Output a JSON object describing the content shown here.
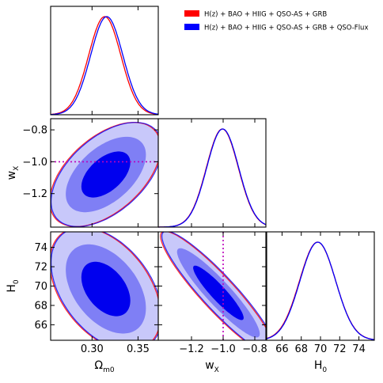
{
  "chart_data": {
    "type": "triangle-corner-plot",
    "parameters": [
      {
        "key": "Om",
        "label": "Ω",
        "label_sub": "m0",
        "range": [
          0.255,
          0.372
        ],
        "ticks": [
          0.3,
          0.35
        ],
        "tick_labels": [
          "0.30",
          "0.35"
        ],
        "truth": null
      },
      {
        "key": "wX",
        "label": "w",
        "label_sub": "X",
        "range": [
          -1.41,
          -0.73
        ],
        "ticks": [
          -1.2,
          -1.0,
          -0.8
        ],
        "tick_labels": [
          "−1.2",
          "−1.0",
          "−0.8"
        ],
        "truth": -1.0
      },
      {
        "key": "H0",
        "label": "H",
        "label_sub": "0",
        "range": [
          64.4,
          75.6
        ],
        "ticks": [
          66,
          68,
          70,
          72,
          74
        ],
        "tick_labels": [
          "66",
          "68",
          "70",
          "72",
          "74"
        ],
        "truth": null
      }
    ],
    "legend": {
      "placement": "top-right",
      "entries": [
        {
          "label": "H(z) + BAO + HIIG + QSO-AS + GRB",
          "color": "#ff0000"
        },
        {
          "label": "H(z) + BAO + HIIG + QSO-AS + GRB + QSO-Flux",
          "color": "#0000ff"
        }
      ]
    },
    "series": [
      {
        "name": "H(z) + BAO + HIIG + QSO-AS + GRB",
        "color": "#ff0000",
        "marginals": {
          "Om": {
            "mean": 0.3138,
            "sigma": 0.0175
          },
          "wX": {
            "mean": -1.005,
            "sigma": 0.101
          },
          "H0": {
            "mean": 69.7,
            "sigma": 1.88
          }
        }
      },
      {
        "name": "H(z) + BAO + HIIG + QSO-AS + GRB + QSO-Flux",
        "color": "#0000ff",
        "marginals": {
          "Om": {
            "mean": 0.316,
            "sigma": 0.0175
          },
          "wX": {
            "mean": -1.003,
            "sigma": 0.101
          },
          "H0": {
            "mean": 69.72,
            "sigma": 1.86
          }
        }
      }
    ],
    "contours_2d": [
      {
        "x": "Om",
        "y": "wX",
        "x_center": 0.315,
        "y_center": -1.08,
        "sigma_x": 0.0175,
        "sigma_y": 0.095,
        "correlation": 0.52
      },
      {
        "x": "Om",
        "y": "H0",
        "x_center": 0.315,
        "y_center": 69.7,
        "sigma_x": 0.0175,
        "sigma_y": 1.85,
        "correlation": -0.43
      },
      {
        "x": "wX",
        "y": "H0",
        "x_center": -1.03,
        "y_center": 69.3,
        "sigma_x": 0.105,
        "sigma_y": 1.85,
        "correlation": -0.92
      }
    ],
    "confidence_levels": [
      "1σ",
      "2σ",
      "3σ"
    ],
    "shade_colors": [
      "#0000ee",
      "#7f7ff5",
      "#c8c8fa"
    ],
    "truth_line_color": "#bb00bb",
    "grid": false
  }
}
